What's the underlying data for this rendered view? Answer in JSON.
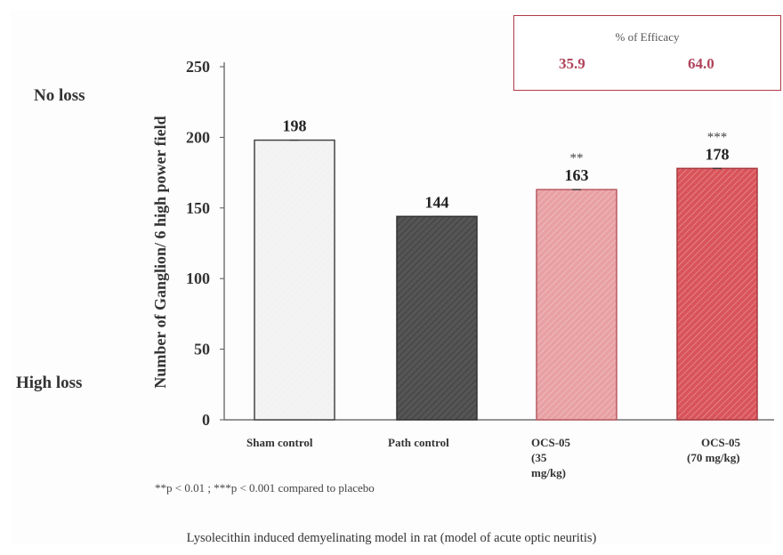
{
  "side_labels": {
    "top": "No loss",
    "bottom": "High loss"
  },
  "efficacy": {
    "title": "% of Efficacy",
    "values": [
      "35.9",
      "64.0"
    ],
    "color": "#b0435a"
  },
  "footnote": "**p < 0.01 ; ***p < 0.001 compared to placebo",
  "caption": "Lysolecithin induced demyelinating model in rat (model of acute optic neuritis)",
  "chart_data": {
    "type": "bar",
    "ylabel": "Number of Ganglion/ 6 high power field",
    "xlabel": "",
    "ylim": [
      0,
      250
    ],
    "yticks": [
      0,
      50,
      100,
      150,
      200,
      250
    ],
    "categories": [
      [
        "Sham control"
      ],
      [
        "Path control"
      ],
      [
        "OCS-05",
        "(35",
        "mg/kg)"
      ],
      [
        "OCS-05",
        "(70 mg/kg)"
      ]
    ],
    "values": [
      198,
      144,
      163,
      178
    ],
    "value_labels": [
      "198",
      "144",
      "163",
      "178"
    ],
    "significance": [
      "",
      "",
      "**",
      "***"
    ],
    "bar_colors": [
      "#f2f2f2",
      "#555555",
      "#e8a0a4",
      "#d9545a"
    ],
    "bar_edge_colors": [
      "#444444",
      "#333333",
      "#b85a60",
      "#a83a40"
    ]
  }
}
